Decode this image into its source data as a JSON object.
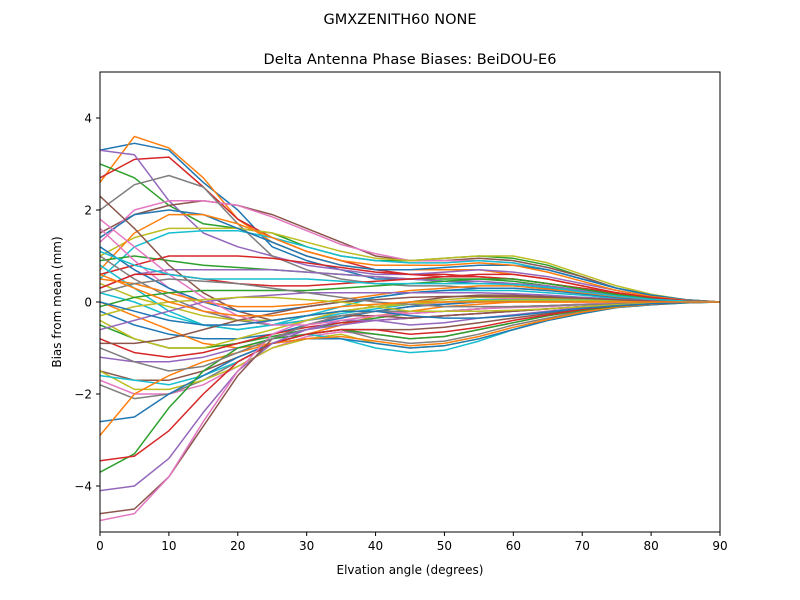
{
  "chart_data": {
    "type": "line",
    "suptitle": "GMXZENITH60     NONE",
    "title": "Delta Antenna Phase Biases: BeiDOU-E6",
    "xlabel": "Elvation angle (degrees)",
    "ylabel": "Bias from mean (mm)",
    "xlim": [
      0,
      90
    ],
    "ylim": [
      -5,
      5
    ],
    "xticks": [
      0,
      10,
      20,
      30,
      40,
      50,
      60,
      70,
      80,
      90
    ],
    "yticks": [
      -4,
      -2,
      0,
      2,
      4
    ],
    "ytick_labels": [
      "−4",
      "−2",
      "0",
      "2",
      "4"
    ],
    "grid": false,
    "legend": "none",
    "x": [
      0,
      5,
      10,
      15,
      20,
      25,
      30,
      35,
      40,
      45,
      50,
      55,
      60,
      65,
      70,
      75,
      80,
      85,
      90
    ],
    "colors": [
      "#1f77b4",
      "#ff7f0e",
      "#2ca02c",
      "#d62728",
      "#9467bd",
      "#8c564b",
      "#e377c2",
      "#7f7f7f",
      "#bcbd22",
      "#17becf"
    ],
    "series": [
      {
        "values": [
          3.3,
          3.45,
          3.3,
          2.6,
          2.0,
          1.2,
          0.9,
          0.7,
          0.5,
          0.5,
          0.45,
          0.4,
          0.4,
          0.3,
          0.25,
          0.15,
          0.1,
          0.03,
          0.0
        ]
      },
      {
        "values": [
          2.6,
          3.6,
          3.35,
          2.7,
          1.8,
          1.3,
          1.0,
          0.8,
          0.7,
          0.7,
          0.7,
          0.7,
          0.6,
          0.5,
          0.35,
          0.2,
          0.1,
          0.03,
          0.0
        ]
      },
      {
        "values": [
          3.0,
          2.7,
          2.1,
          1.7,
          1.6,
          1.5,
          1.2,
          1.0,
          0.9,
          0.9,
          0.95,
          1.0,
          0.95,
          0.8,
          0.55,
          0.3,
          0.15,
          0.05,
          0.0
        ]
      },
      {
        "values": [
          2.7,
          3.1,
          3.15,
          2.5,
          1.8,
          1.4,
          1.1,
          0.9,
          0.7,
          0.6,
          0.6,
          0.55,
          0.5,
          0.4,
          0.3,
          0.2,
          0.1,
          0.03,
          0.0
        ]
      },
      {
        "values": [
          3.3,
          3.2,
          2.2,
          1.5,
          1.2,
          1.0,
          0.8,
          0.7,
          0.6,
          0.6,
          0.65,
          0.7,
          0.65,
          0.55,
          0.4,
          0.25,
          0.12,
          0.04,
          0.0
        ]
      },
      {
        "values": [
          1.5,
          1.9,
          2.1,
          2.2,
          2.1,
          1.9,
          1.6,
          1.3,
          1.0,
          0.9,
          0.9,
          0.95,
          0.9,
          0.75,
          0.55,
          0.3,
          0.15,
          0.05,
          0.0
        ]
      },
      {
        "values": [
          1.3,
          2.0,
          2.2,
          2.2,
          2.1,
          1.85,
          1.55,
          1.25,
          1.05,
          0.9,
          0.9,
          0.9,
          0.85,
          0.7,
          0.5,
          0.3,
          0.15,
          0.05,
          0.0
        ]
      },
      {
        "values": [
          2.0,
          2.55,
          2.75,
          2.5,
          1.7,
          1.0,
          0.7,
          0.5,
          0.4,
          0.35,
          0.35,
          0.3,
          0.3,
          0.25,
          0.2,
          0.12,
          0.06,
          0.02,
          0.0
        ]
      },
      {
        "values": [
          1.0,
          1.4,
          1.6,
          1.6,
          1.6,
          1.5,
          1.3,
          1.1,
          0.95,
          0.9,
          0.95,
          1.0,
          1.0,
          0.85,
          0.6,
          0.35,
          0.17,
          0.05,
          0.0
        ]
      },
      {
        "values": [
          0.5,
          1.2,
          1.5,
          1.55,
          1.55,
          1.4,
          1.2,
          1.0,
          0.9,
          0.85,
          0.85,
          0.9,
          0.85,
          0.7,
          0.5,
          0.3,
          0.15,
          0.05,
          0.0
        ]
      },
      {
        "values": [
          1.4,
          1.9,
          2.0,
          1.9,
          1.6,
          1.3,
          1.0,
          0.8,
          0.7,
          0.7,
          0.75,
          0.8,
          0.8,
          0.7,
          0.5,
          0.3,
          0.15,
          0.05,
          0.0
        ]
      },
      {
        "values": [
          0.7,
          1.5,
          1.9,
          1.9,
          1.7,
          1.4,
          1.1,
          0.9,
          0.8,
          0.8,
          0.8,
          0.85,
          0.8,
          0.65,
          0.45,
          0.25,
          0.12,
          0.04,
          0.0
        ]
      },
      {
        "values": [
          0.9,
          1.0,
          0.9,
          0.8,
          0.75,
          0.7,
          0.65,
          0.6,
          0.55,
          0.5,
          0.5,
          0.5,
          0.45,
          0.35,
          0.25,
          0.15,
          0.08,
          0.02,
          0.0
        ]
      },
      {
        "values": [
          0.6,
          0.8,
          1.0,
          1.0,
          1.0,
          0.95,
          0.85,
          0.75,
          0.65,
          0.6,
          0.55,
          0.55,
          0.5,
          0.4,
          0.3,
          0.18,
          0.09,
          0.03,
          0.0
        ]
      },
      {
        "values": [
          0.3,
          0.6,
          0.7,
          0.7,
          0.7,
          0.7,
          0.65,
          0.6,
          0.55,
          0.5,
          0.45,
          0.45,
          0.4,
          0.35,
          0.25,
          0.15,
          0.08,
          0.02,
          0.0
        ]
      },
      {
        "values": [
          2.3,
          1.6,
          0.8,
          0.2,
          -0.2,
          -0.4,
          -0.3,
          -0.2,
          -0.1,
          0.0,
          0.1,
          0.15,
          0.15,
          0.12,
          0.1,
          0.06,
          0.03,
          0.01,
          0.0
        ]
      },
      {
        "values": [
          1.6,
          0.9,
          0.3,
          -0.1,
          -0.4,
          -0.5,
          -0.4,
          -0.3,
          -0.2,
          -0.1,
          0.0,
          0.05,
          0.08,
          0.08,
          0.06,
          0.04,
          0.02,
          0.01,
          0.0
        ]
      },
      {
        "values": [
          1.0,
          0.5,
          0.1,
          -0.2,
          -0.4,
          -0.5,
          -0.4,
          -0.3,
          -0.2,
          -0.1,
          -0.05,
          0.0,
          0.02,
          0.03,
          0.03,
          0.02,
          0.01,
          0.0,
          0.0
        ]
      },
      {
        "values": [
          0.4,
          0.1,
          -0.1,
          -0.3,
          -0.4,
          -0.4,
          -0.3,
          -0.2,
          -0.1,
          0.0,
          0.05,
          0.1,
          0.1,
          0.08,
          0.06,
          0.04,
          0.02,
          0.01,
          0.0
        ]
      },
      {
        "values": [
          0.2,
          0.0,
          -0.3,
          -0.5,
          -0.6,
          -0.5,
          -0.4,
          -0.25,
          -0.15,
          -0.05,
          0.0,
          0.05,
          0.05,
          0.05,
          0.04,
          0.02,
          0.01,
          0.0,
          0.0
        ]
      },
      {
        "values": [
          -0.2,
          -0.5,
          -0.7,
          -0.8,
          -0.8,
          -0.7,
          -0.5,
          -0.35,
          -0.2,
          -0.1,
          -0.05,
          0.0,
          0.02,
          0.02,
          0.02,
          0.01,
          0.01,
          0.0,
          0.0
        ]
      },
      {
        "values": [
          0.0,
          -0.3,
          -0.6,
          -0.9,
          -1.0,
          -0.9,
          -0.7,
          -0.5,
          -0.3,
          -0.2,
          -0.1,
          -0.05,
          0.0,
          0.0,
          0.0,
          0.0,
          0.0,
          0.0,
          0.0
        ]
      },
      {
        "values": [
          -0.5,
          -0.8,
          -1.0,
          -1.0,
          -0.9,
          -0.75,
          -0.6,
          -0.45,
          -0.35,
          -0.25,
          -0.2,
          -0.15,
          -0.1,
          -0.08,
          -0.05,
          -0.03,
          -0.02,
          -0.01,
          0.0
        ]
      },
      {
        "values": [
          -0.8,
          -1.1,
          -1.2,
          -1.1,
          -0.9,
          -0.7,
          -0.55,
          -0.45,
          -0.4,
          -0.35,
          -0.3,
          -0.25,
          -0.2,
          -0.15,
          -0.1,
          -0.06,
          -0.03,
          -0.01,
          0.0
        ]
      },
      {
        "values": [
          -1.2,
          -1.3,
          -1.3,
          -1.2,
          -1.0,
          -0.8,
          -0.6,
          -0.5,
          -0.4,
          -0.35,
          -0.3,
          -0.25,
          -0.2,
          -0.15,
          -0.1,
          -0.06,
          -0.03,
          -0.01,
          0.0
        ]
      },
      {
        "values": [
          -1.5,
          -1.7,
          -1.7,
          -1.5,
          -1.2,
          -0.9,
          -0.7,
          -0.6,
          -0.6,
          -0.6,
          -0.55,
          -0.45,
          -0.35,
          -0.25,
          -0.15,
          -0.08,
          -0.04,
          -0.01,
          0.0
        ]
      },
      {
        "values": [
          -1.7,
          -2.0,
          -2.0,
          -1.8,
          -1.4,
          -1.0,
          -0.75,
          -0.65,
          -0.7,
          -0.8,
          -0.75,
          -0.6,
          -0.45,
          -0.3,
          -0.18,
          -0.1,
          -0.05,
          -0.01,
          0.0
        ]
      },
      {
        "values": [
          -1.8,
          -2.1,
          -2.0,
          -1.7,
          -1.3,
          -0.9,
          -0.7,
          -0.6,
          -0.8,
          -0.9,
          -0.85,
          -0.7,
          -0.5,
          -0.35,
          -0.2,
          -0.1,
          -0.05,
          -0.01,
          0.0
        ]
      },
      {
        "values": [
          -1.5,
          -1.9,
          -1.9,
          -1.7,
          -1.4,
          -1.0,
          -0.8,
          -0.7,
          -0.9,
          -1.0,
          -0.95,
          -0.8,
          -0.6,
          -0.4,
          -0.25,
          -0.12,
          -0.06,
          -0.02,
          0.0
        ]
      },
      {
        "values": [
          -1.6,
          -1.7,
          -1.8,
          -1.6,
          -1.3,
          -0.9,
          -0.7,
          -0.8,
          -1.0,
          -1.1,
          -1.05,
          -0.85,
          -0.6,
          -0.4,
          -0.25,
          -0.12,
          -0.06,
          -0.02,
          0.0
        ]
      },
      {
        "values": [
          -2.6,
          -2.5,
          -2.0,
          -1.6,
          -1.2,
          -0.9,
          -0.8,
          -0.8,
          -0.9,
          -1.0,
          -0.95,
          -0.8,
          -0.6,
          -0.4,
          -0.25,
          -0.12,
          -0.06,
          -0.02,
          0.0
        ]
      },
      {
        "values": [
          -2.9,
          -2.0,
          -1.6,
          -1.3,
          -1.1,
          -0.9,
          -0.8,
          -0.75,
          -0.85,
          -0.95,
          -0.9,
          -0.75,
          -0.55,
          -0.38,
          -0.22,
          -0.11,
          -0.05,
          -0.01,
          0.0
        ]
      },
      {
        "values": [
          -3.7,
          -3.3,
          -2.3,
          -1.5,
          -1.0,
          -0.8,
          -0.7,
          -0.6,
          -0.7,
          -0.8,
          -0.75,
          -0.6,
          -0.45,
          -0.3,
          -0.18,
          -0.09,
          -0.04,
          -0.01,
          0.0
        ]
      },
      {
        "values": [
          -3.45,
          -3.35,
          -2.8,
          -2.0,
          -1.3,
          -0.9,
          -0.7,
          -0.6,
          -0.6,
          -0.7,
          -0.65,
          -0.55,
          -0.4,
          -0.28,
          -0.16,
          -0.08,
          -0.04,
          -0.01,
          0.0
        ]
      },
      {
        "values": [
          -4.1,
          -4.0,
          -3.4,
          -2.4,
          -1.5,
          -0.9,
          -0.6,
          -0.4,
          -0.4,
          -0.5,
          -0.45,
          -0.35,
          -0.28,
          -0.2,
          -0.12,
          -0.06,
          -0.03,
          -0.01,
          0.0
        ]
      },
      {
        "values": [
          -4.6,
          -4.5,
          -3.8,
          -2.7,
          -1.6,
          -0.8,
          -0.5,
          -0.3,
          -0.3,
          -0.35,
          -0.3,
          -0.25,
          -0.2,
          -0.15,
          -0.1,
          -0.05,
          -0.02,
          -0.01,
          0.0
        ]
      },
      {
        "values": [
          -4.75,
          -4.6,
          -3.8,
          -2.6,
          -1.5,
          -0.7,
          -0.4,
          -0.2,
          -0.2,
          -0.25,
          -0.2,
          -0.15,
          -0.12,
          -0.1,
          -0.06,
          -0.03,
          -0.02,
          0.0,
          0.0
        ]
      },
      {
        "values": [
          -1.0,
          -1.3,
          -1.5,
          -1.4,
          -1.1,
          -0.8,
          -0.5,
          -0.3,
          -0.2,
          -0.2,
          -0.2,
          -0.15,
          -0.1,
          -0.08,
          -0.05,
          -0.03,
          -0.02,
          0.0,
          0.0
        ]
      },
      {
        "values": [
          -0.4,
          -0.8,
          -1.0,
          -1.0,
          -0.8,
          -0.6,
          -0.4,
          -0.2,
          -0.1,
          -0.05,
          0.0,
          0.03,
          0.04,
          0.04,
          0.03,
          0.02,
          0.01,
          0.0,
          0.0
        ]
      },
      {
        "values": [
          0.8,
          0.3,
          -0.2,
          -0.5,
          -0.6,
          -0.5,
          -0.3,
          -0.1,
          0.1,
          0.2,
          0.25,
          0.25,
          0.25,
          0.2,
          0.15,
          0.08,
          0.04,
          0.01,
          0.0
        ]
      },
      {
        "values": [
          1.2,
          0.7,
          0.3,
          0.0,
          -0.2,
          -0.2,
          -0.1,
          0.0,
          0.1,
          0.2,
          0.25,
          0.3,
          0.3,
          0.25,
          0.18,
          0.1,
          0.05,
          0.02,
          0.0
        ]
      },
      {
        "values": [
          0.5,
          0.4,
          0.2,
          0.0,
          -0.1,
          -0.1,
          -0.05,
          0.05,
          0.15,
          0.25,
          0.3,
          0.35,
          0.35,
          0.28,
          0.2,
          0.12,
          0.06,
          0.02,
          0.0
        ]
      },
      {
        "values": [
          -0.1,
          0.1,
          0.2,
          0.25,
          0.25,
          0.25,
          0.25,
          0.3,
          0.35,
          0.4,
          0.45,
          0.5,
          0.5,
          0.4,
          0.28,
          0.16,
          0.08,
          0.02,
          0.0
        ]
      },
      {
        "values": [
          0.3,
          0.6,
          0.6,
          0.5,
          0.4,
          0.35,
          0.35,
          0.4,
          0.45,
          0.5,
          0.55,
          0.6,
          0.6,
          0.5,
          0.35,
          0.2,
          0.1,
          0.03,
          0.0
        ]
      },
      {
        "values": [
          -0.6,
          -0.4,
          -0.2,
          0.0,
          0.1,
          0.15,
          0.2,
          0.2,
          0.2,
          0.2,
          0.2,
          0.2,
          0.18,
          0.15,
          0.1,
          0.06,
          0.03,
          0.01,
          0.0
        ]
      },
      {
        "values": [
          -0.9,
          -0.9,
          -0.8,
          -0.6,
          -0.4,
          -0.25,
          -0.1,
          0.0,
          0.05,
          0.1,
          0.12,
          0.12,
          0.12,
          0.1,
          0.08,
          0.05,
          0.02,
          0.01,
          0.0
        ]
      },
      {
        "values": [
          1.8,
          1.2,
          0.6,
          0.1,
          -0.3,
          -0.5,
          -0.5,
          -0.4,
          -0.3,
          -0.25,
          -0.2,
          -0.15,
          -0.1,
          -0.08,
          -0.05,
          -0.03,
          -0.02,
          0.0,
          0.0
        ]
      },
      {
        "values": [
          0.2,
          0.4,
          0.5,
          0.45,
          0.4,
          0.3,
          0.2,
          0.1,
          0.0,
          -0.05,
          -0.1,
          -0.1,
          -0.1,
          -0.08,
          -0.06,
          -0.04,
          -0.02,
          -0.01,
          0.0
        ]
      },
      {
        "values": [
          -0.3,
          -0.1,
          0.0,
          0.05,
          0.1,
          0.1,
          0.05,
          0.0,
          -0.1,
          -0.2,
          -0.2,
          -0.2,
          -0.18,
          -0.15,
          -0.1,
          -0.06,
          -0.03,
          -0.01,
          0.0
        ]
      },
      {
        "values": [
          1.1,
          0.8,
          0.6,
          0.5,
          0.5,
          0.5,
          0.5,
          0.45,
          0.4,
          0.4,
          0.4,
          0.4,
          0.38,
          0.32,
          0.22,
          0.13,
          0.06,
          0.02,
          0.0
        ]
      },
      {
        "values": [
          0.0,
          -0.2,
          -0.4,
          -0.5,
          -0.5,
          -0.4,
          -0.3,
          -0.2,
          -0.2,
          -0.3,
          -0.35,
          -0.35,
          -0.3,
          -0.22,
          -0.14,
          -0.08,
          -0.04,
          -0.01,
          0.0
        ]
      },
      {
        "values": [
          0.6,
          0.3,
          0.0,
          -0.2,
          -0.3,
          -0.3,
          -0.2,
          -0.1,
          -0.05,
          0.0,
          0.0,
          0.0,
          0.0,
          0.0,
          0.0,
          0.0,
          0.0,
          0.0,
          0.0
        ]
      }
    ]
  }
}
